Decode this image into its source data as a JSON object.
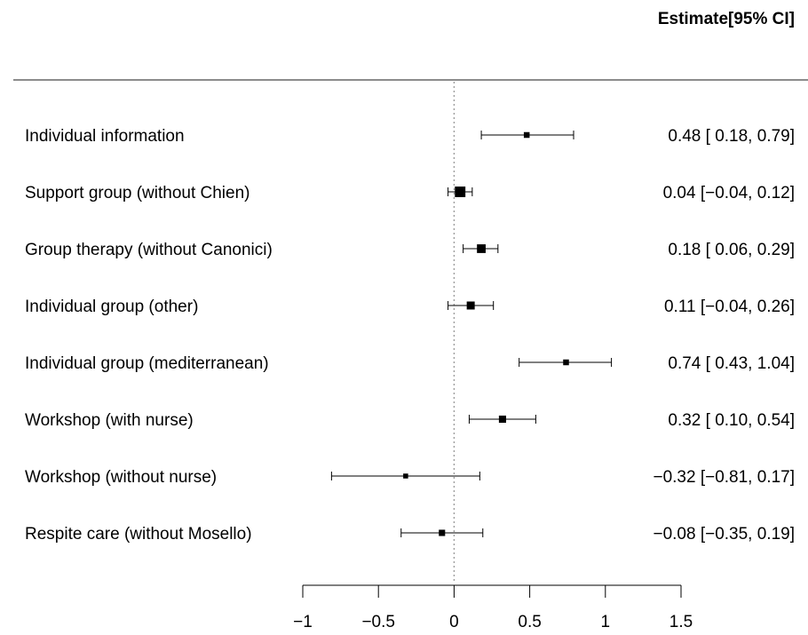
{
  "chart_data": {
    "type": "forest",
    "header": "Estimate[95% CI]",
    "x_ticks": [
      -1,
      -0.5,
      0,
      0.5,
      1,
      1.5
    ],
    "x_tick_labels": [
      "−1",
      "−0.5",
      "0",
      "0.5",
      "1",
      "1.5"
    ],
    "xlim": [
      -1,
      1.5
    ],
    "reference_line": 0,
    "rows": [
      {
        "label": "Individual information",
        "estimate": 0.48,
        "lower": 0.18,
        "upper": 0.79,
        "text": "0.48 [ 0.18, 0.79]",
        "weight": 1.0
      },
      {
        "label": "Support group (without Chien)",
        "estimate": 0.04,
        "lower": -0.04,
        "upper": 0.12,
        "text": "0.04 [−0.04, 0.12]",
        "weight": 3.6
      },
      {
        "label": "Group therapy (without Canonici)",
        "estimate": 0.18,
        "lower": 0.06,
        "upper": 0.29,
        "text": "0.18 [ 0.06, 0.29]",
        "weight": 2.4
      },
      {
        "label": "Individual group (other)",
        "estimate": 0.11,
        "lower": -0.04,
        "upper": 0.26,
        "text": "0.11 [−0.04, 0.26]",
        "weight": 2.0
      },
      {
        "label": "Individual group (mediterranean)",
        "estimate": 0.74,
        "lower": 0.43,
        "upper": 1.04,
        "text": "0.74 [ 0.43, 1.04]",
        "weight": 1.0
      },
      {
        "label": "Workshop (with nurse)",
        "estimate": 0.32,
        "lower": 0.1,
        "upper": 0.54,
        "text": "0.32 [ 0.10, 0.54]",
        "weight": 1.6
      },
      {
        "label": "Workshop (without nurse)",
        "estimate": -0.32,
        "lower": -0.81,
        "upper": 0.17,
        "text": "−0.32 [−0.81, 0.17]",
        "weight": 0.7
      },
      {
        "label": "Respite care (without Mosello)",
        "estimate": -0.08,
        "lower": -0.35,
        "upper": 0.19,
        "text": "−0.08 [−0.35, 0.19]",
        "weight": 1.2
      }
    ]
  }
}
